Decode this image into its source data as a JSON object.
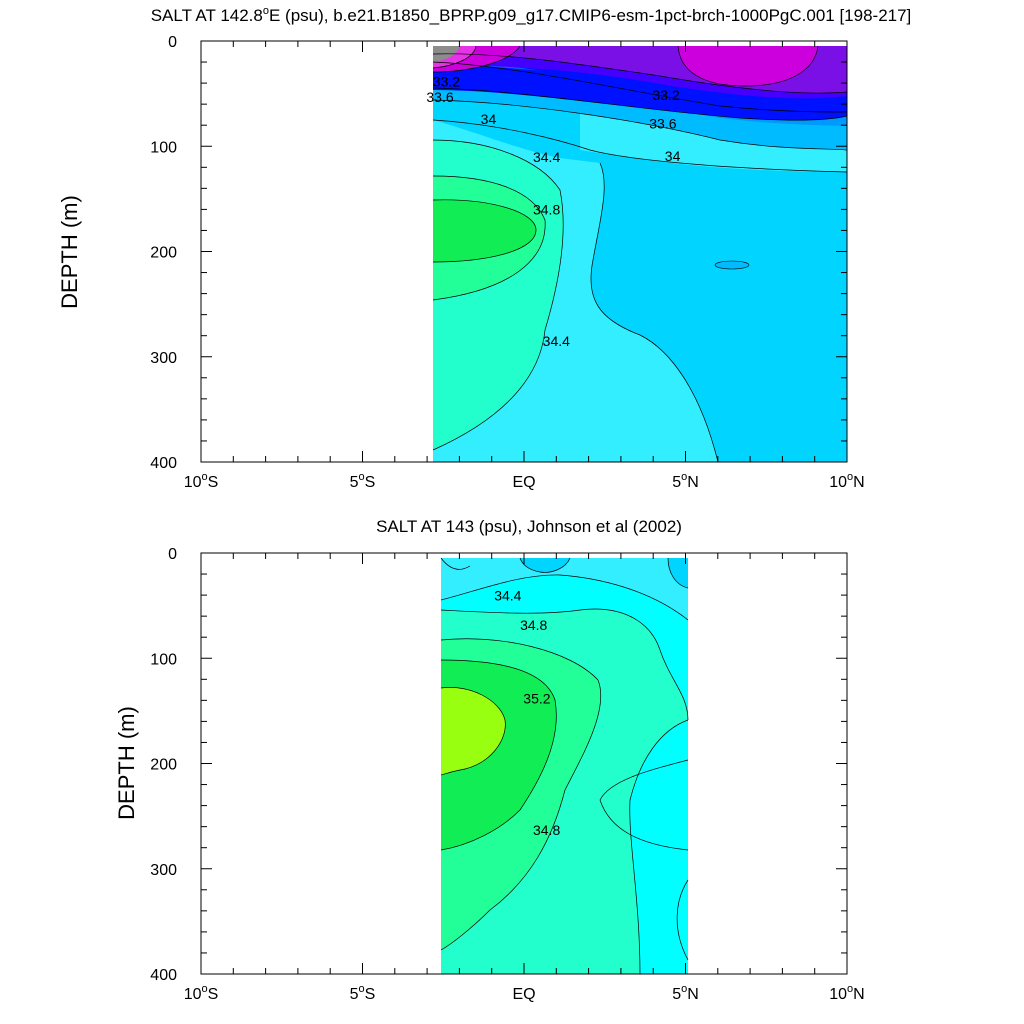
{
  "colors": {
    "gray": "#8c8c8c",
    "violet_pink": "#e633e6",
    "magenta": "#cc00dd",
    "purple": "#7a10e6",
    "indigo": "#4400ff",
    "blue": "#0011ff",
    "mid_blue": "#0066ff",
    "azure": "#0099ff",
    "sky": "#00bbff",
    "light_sky": "#00d4ff",
    "cyan_light": "#33eeff",
    "cyan": "#00ffff",
    "aquamarine": "#22ffcc",
    "spring_green": "#22ff99",
    "green": "#11ee55",
    "lime": "#99ff11"
  },
  "chart_data": [
    {
      "type": "contour",
      "title_main": "SALT AT 142.8",
      "title_deg": "o",
      "title_rest": "E (psu), b.e21.B1850_BPRP.g09_g17.CMIP6-esm-1pct-brch-1000PgC.001 [198-217]",
      "ylabel": "DEPTH (m)",
      "xlim": [
        -10,
        10
      ],
      "ylim": [
        400,
        0
      ],
      "y_ticks": [
        "0",
        "100",
        "200",
        "300",
        "400"
      ],
      "x_ticks": [
        {
          "value": "10",
          "deg": "o",
          "hemi": "S"
        },
        {
          "value": "5",
          "deg": "o",
          "hemi": "S"
        },
        {
          "value": "EQ",
          "deg": "",
          "hemi": ""
        },
        {
          "value": "5",
          "deg": "o",
          "hemi": "N"
        },
        {
          "value": "10",
          "deg": "o",
          "hemi": "N"
        }
      ],
      "data_extent": {
        "lat": [
          -3.1,
          10
        ],
        "depth": [
          5,
          400
        ]
      },
      "contour_labels": [
        {
          "text": "33.2",
          "lat": -2.4,
          "depth": 43
        },
        {
          "text": "33.6",
          "lat": -2.6,
          "depth": 58
        },
        {
          "text": "34",
          "lat": -1.1,
          "depth": 79
        },
        {
          "text": "33.2",
          "lat": 4.4,
          "depth": 56
        },
        {
          "text": "33.6",
          "lat": 4.3,
          "depth": 83
        },
        {
          "text": "34",
          "lat": 4.6,
          "depth": 114
        },
        {
          "text": "34.4",
          "lat": 0.7,
          "depth": 115
        },
        {
          "text": "34.8",
          "lat": 0.7,
          "depth": 165
        },
        {
          "text": "34.4",
          "lat": 1.0,
          "depth": 290
        }
      ]
    },
    {
      "type": "contour",
      "title": "SALT AT 143 (psu), Johnson et al (2002)",
      "ylabel": "DEPTH (m)",
      "xlim": [
        -10,
        10
      ],
      "ylim": [
        400,
        0
      ],
      "y_ticks": [
        "0",
        "100",
        "200",
        "300",
        "400"
      ],
      "x_ticks": [
        {
          "value": "10",
          "deg": "o",
          "hemi": "S"
        },
        {
          "value": "5",
          "deg": "o",
          "hemi": "S"
        },
        {
          "value": "EQ",
          "deg": "",
          "hemi": ""
        },
        {
          "value": "5",
          "deg": "o",
          "hemi": "N"
        },
        {
          "value": "10",
          "deg": "o",
          "hemi": "N"
        }
      ],
      "data_extent": {
        "lat": [
          -2.8,
          5
        ],
        "depth": [
          5,
          400
        ]
      },
      "contour_labels": [
        {
          "text": "34.4",
          "lat": -0.5,
          "depth": 45
        },
        {
          "text": "34.8",
          "lat": 0.3,
          "depth": 73
        },
        {
          "text": "35.2",
          "lat": 0.4,
          "depth": 143
        },
        {
          "text": "34.8",
          "lat": 0.7,
          "depth": 268
        }
      ]
    }
  ]
}
